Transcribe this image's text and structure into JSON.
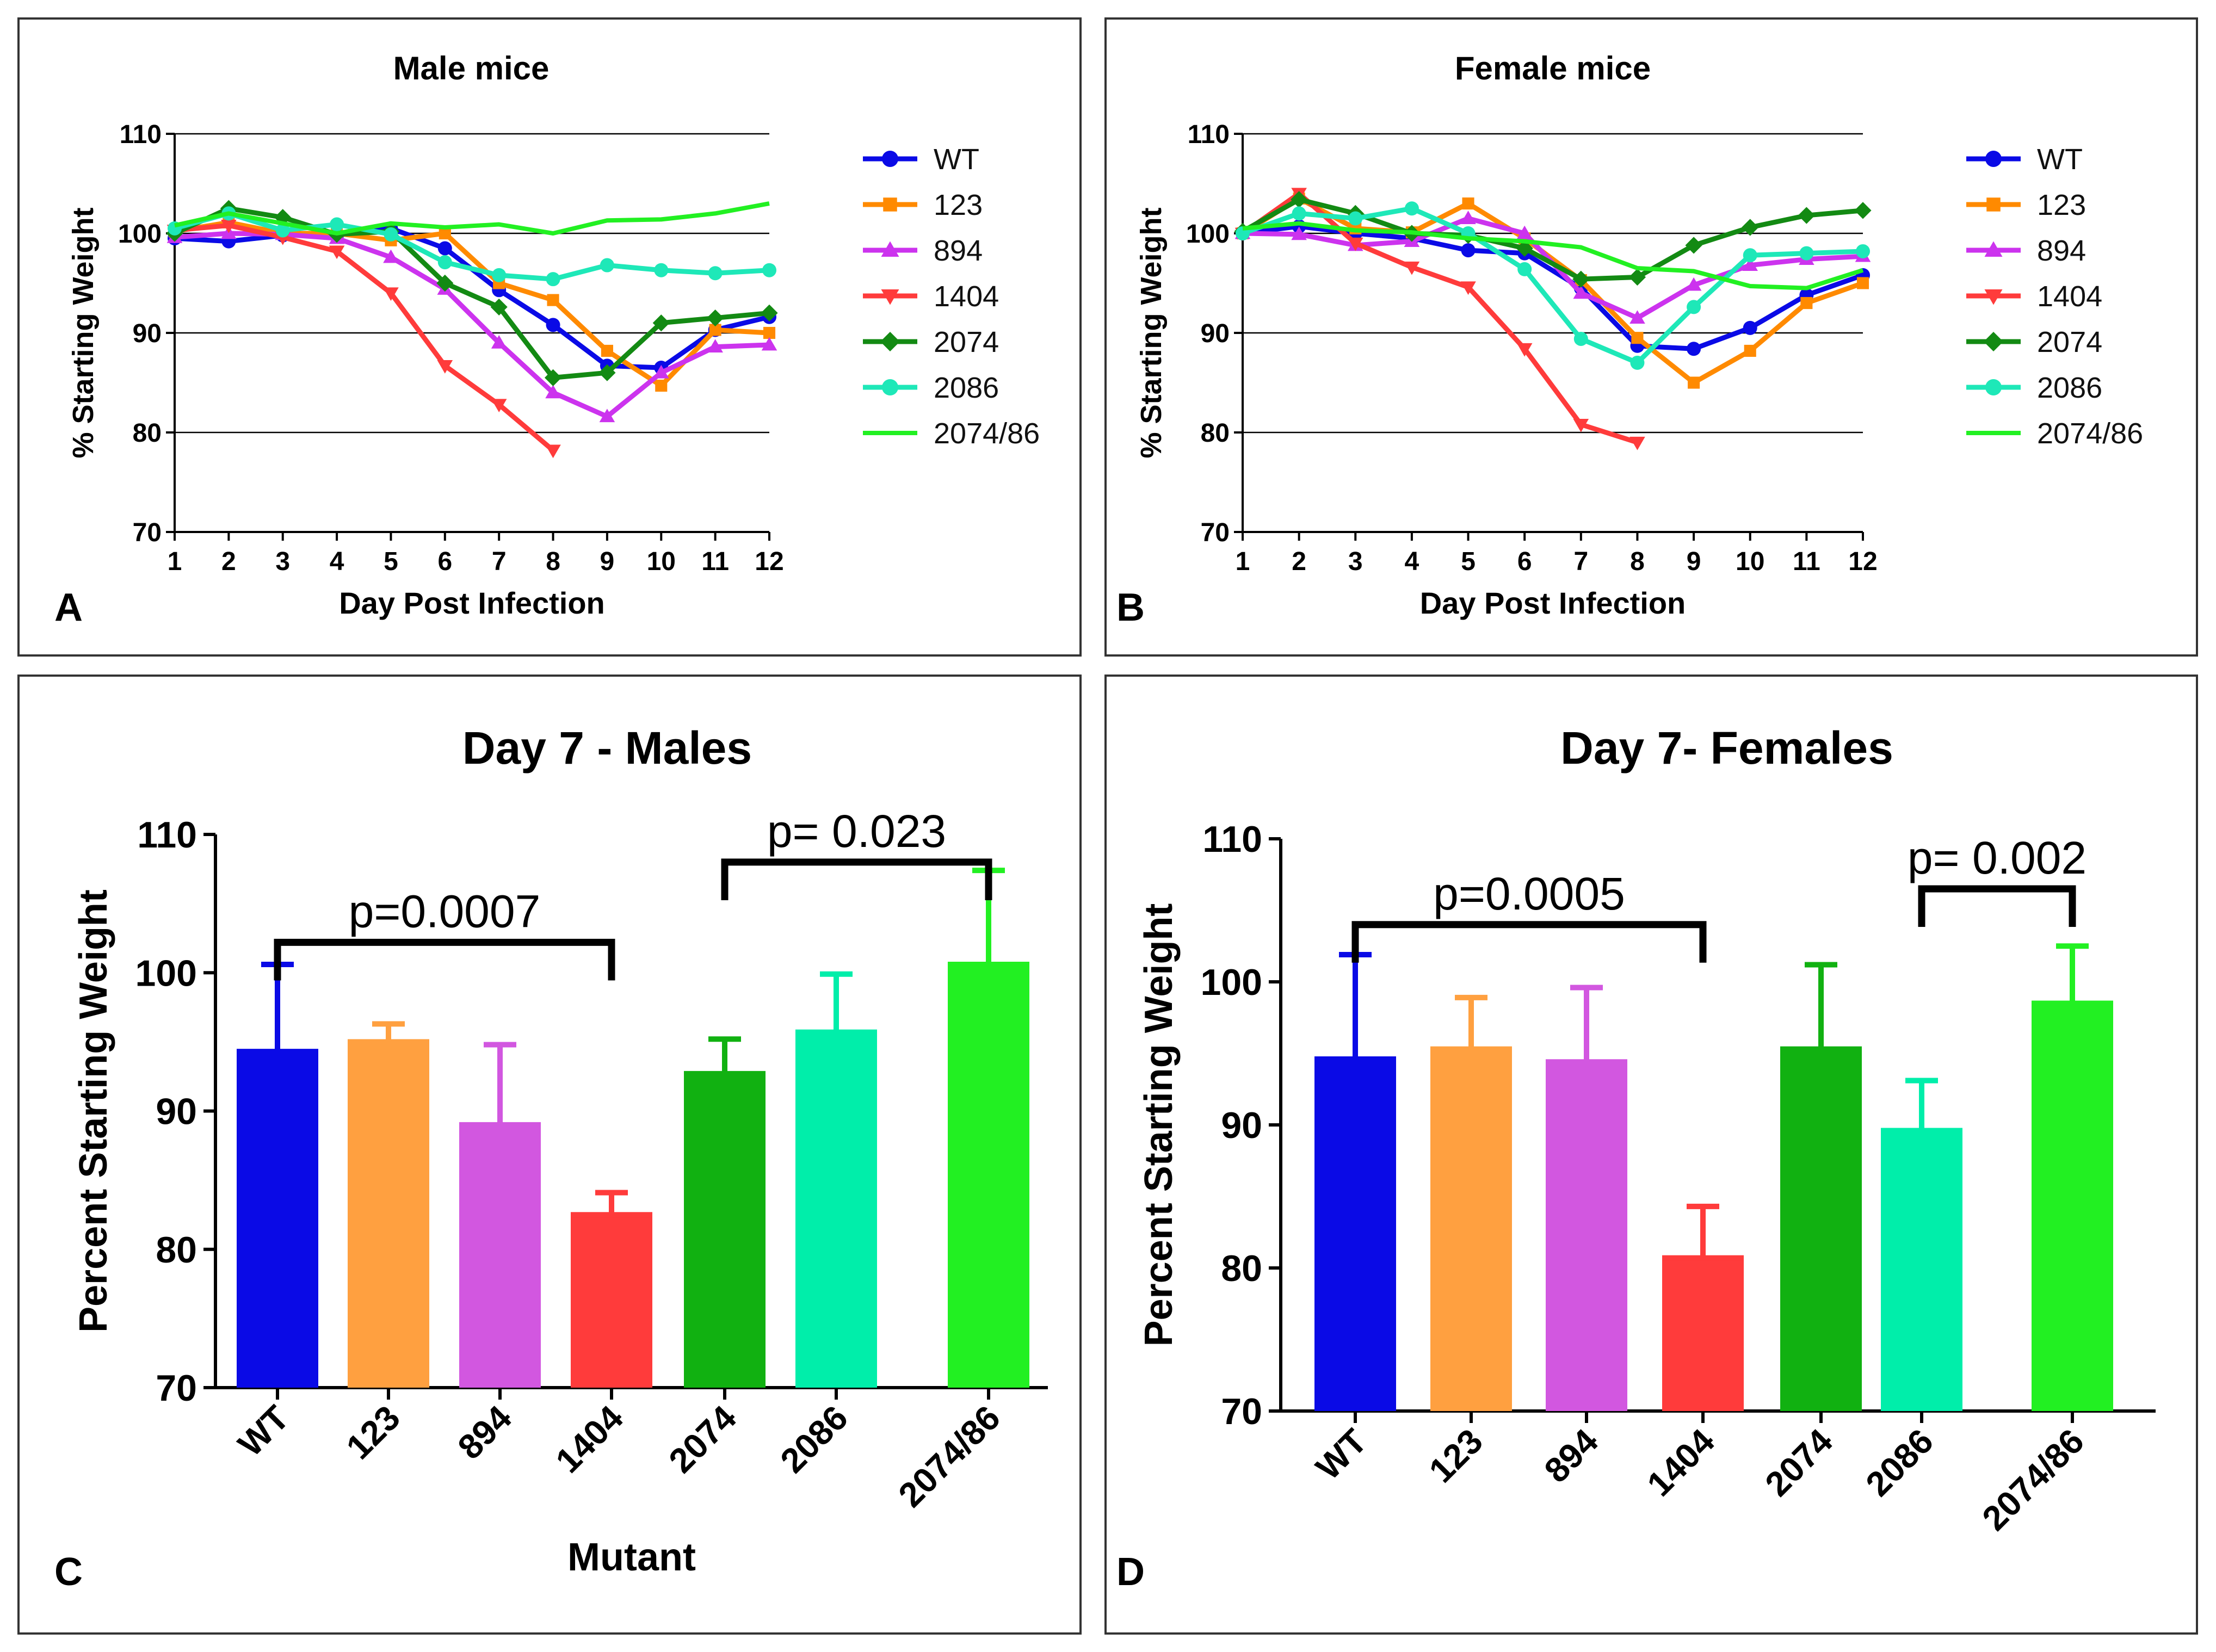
{
  "colors": {
    "WT": "#0a0ae6",
    "123": "#ff8a00",
    "894": "#cc33ee",
    "1404": "#ff3b3b",
    "2074": "#138a13",
    "2086": "#1ee8b8",
    "2074/86": "#22f022",
    "grid": "#000000"
  },
  "bar_colors": {
    "WT": "#0a0ae6",
    "123": "#ffa040",
    "894": "#d257e0",
    "1404": "#ff3b3b",
    "2074": "#11b111",
    "2086": "#00eeaa",
    "2074/86": "#22f022"
  },
  "panels": {
    "a": {
      "letter": "A"
    },
    "b": {
      "letter": "B"
    },
    "c": {
      "letter": "C"
    },
    "d": {
      "letter": "D"
    }
  },
  "chart_data": [
    {
      "id": "a",
      "type": "line",
      "title": "Male mice",
      "xlabel": "Day Post Infection",
      "ylabel": "% Starting Weight",
      "x": [
        1,
        2,
        3,
        4,
        5,
        6,
        7,
        8,
        9,
        10,
        11,
        12
      ],
      "xticks": [
        "1",
        "2",
        "3",
        "4",
        "5",
        "6",
        "7",
        "8",
        "9",
        "10",
        "11",
        "12"
      ],
      "yticks": [
        "70",
        "80",
        "90",
        "100",
        "110"
      ],
      "ylim": [
        70,
        110
      ],
      "grid": true,
      "legend": "right",
      "series": [
        {
          "name": "WT",
          "marker": "circle",
          "values": [
            99.5,
            99.2,
            99.8,
            99.8,
            100.5,
            98.5,
            94.3,
            90.8,
            86.7,
            86.5,
            90.3,
            91.6
          ]
        },
        {
          "name": "123",
          "marker": "square",
          "values": [
            100.2,
            101.1,
            100.0,
            100.0,
            99.3,
            100.0,
            95.0,
            93.3,
            88.2,
            84.7,
            90.3,
            90.0
          ]
        },
        {
          "name": "894",
          "marker": "triangle-up",
          "values": [
            99.6,
            100.0,
            99.9,
            99.5,
            97.6,
            94.4,
            89.0,
            84.0,
            81.6,
            86.0,
            88.6,
            88.8
          ]
        },
        {
          "name": "1404",
          "marker": "triangle-down",
          "values": [
            100.3,
            100.8,
            99.6,
            98.2,
            94.0,
            86.7,
            82.8,
            78.2,
            null,
            null,
            null,
            null
          ]
        },
        {
          "name": "2074",
          "marker": "diamond",
          "values": [
            100.0,
            102.5,
            101.6,
            99.9,
            100.2,
            95.0,
            92.6,
            85.5,
            86.0,
            91.0,
            91.5,
            92.0
          ]
        },
        {
          "name": "2086",
          "marker": "circle",
          "values": [
            100.5,
            102.0,
            100.3,
            100.9,
            99.9,
            97.1,
            95.8,
            95.4,
            96.8,
            96.3,
            96.0,
            96.3
          ]
        },
        {
          "name": "2074/86",
          "marker": "none",
          "values": [
            100.8,
            102.0,
            101.0,
            100.0,
            101.0,
            100.6,
            100.9,
            100.0,
            101.3,
            101.4,
            102.0,
            103.0
          ]
        }
      ]
    },
    {
      "id": "b",
      "type": "line",
      "title": "Female mice",
      "xlabel": "Day Post Infection",
      "ylabel": "% Starting Weight",
      "x": [
        1,
        2,
        3,
        4,
        5,
        6,
        7,
        8,
        9,
        10,
        11,
        12
      ],
      "xticks": [
        "1",
        "2",
        "3",
        "4",
        "5",
        "6",
        "7",
        "8",
        "9",
        "10",
        "11",
        "12"
      ],
      "yticks": [
        "70",
        "80",
        "90",
        "100",
        "110"
      ],
      "ylim": [
        70,
        110
      ],
      "grid": true,
      "legend": "right",
      "series": [
        {
          "name": "WT",
          "marker": "circle",
          "values": [
            100.0,
            100.7,
            100.0,
            99.5,
            98.3,
            98.0,
            94.5,
            88.7,
            88.4,
            90.5,
            93.8,
            95.8
          ]
        },
        {
          "name": "123",
          "marker": "square",
          "values": [
            100.0,
            103.5,
            100.5,
            100.1,
            103.0,
            99.5,
            95.3,
            89.5,
            85.0,
            88.2,
            93.0,
            95.0
          ]
        },
        {
          "name": "894",
          "marker": "triangle-up",
          "values": [
            100.0,
            99.9,
            98.8,
            99.2,
            101.5,
            100.0,
            94.0,
            91.5,
            94.8,
            96.8,
            97.4,
            97.7
          ]
        },
        {
          "name": "1404",
          "marker": "triangle-down",
          "values": [
            100.0,
            104.0,
            99.0,
            96.6,
            94.6,
            88.4,
            80.8,
            79.0,
            null,
            null,
            null,
            null
          ]
        },
        {
          "name": "2074",
          "marker": "diamond",
          "values": [
            100.2,
            103.4,
            102.0,
            100.0,
            99.8,
            98.5,
            95.4,
            95.6,
            98.8,
            100.6,
            101.8,
            102.3
          ]
        },
        {
          "name": "2086",
          "marker": "circle",
          "values": [
            100.0,
            102.0,
            101.5,
            102.5,
            100.0,
            96.4,
            89.4,
            87.0,
            92.6,
            97.8,
            98.0,
            98.2
          ]
        },
        {
          "name": "2074/86",
          "marker": "none",
          "values": [
            100.5,
            101.0,
            100.3,
            100.1,
            99.5,
            99.2,
            98.6,
            96.5,
            96.2,
            94.7,
            94.5,
            96.3
          ]
        }
      ]
    },
    {
      "id": "c",
      "type": "bar",
      "title": "Day 7 - Males",
      "xlabel": "Mutant",
      "ylabel": "Percent Starting Weight",
      "categories": [
        "WT",
        "123",
        "894",
        "1404",
        "2074",
        "2086",
        "2074/86"
      ],
      "values": [
        94.3,
        95.0,
        89.0,
        82.5,
        92.7,
        95.7,
        100.6
      ],
      "errors": [
        6.3,
        1.3,
        5.8,
        1.6,
        2.5,
        4.2,
        6.8
      ],
      "yticks": [
        "70",
        "80",
        "90",
        "100",
        "110"
      ],
      "ylim": [
        70,
        110
      ],
      "grid": false,
      "annotations": [
        {
          "text": "p=0.0007",
          "from": 0,
          "to": 3,
          "level": 102.2
        },
        {
          "text": "p= 0.023",
          "from": 4,
          "to": 6,
          "level": 108.0
        }
      ]
    },
    {
      "id": "d",
      "type": "bar",
      "title": "Day 7- Females",
      "xlabel": "",
      "ylabel": "Percent Starting Weight",
      "categories": [
        "WT",
        "123",
        "894",
        "1404",
        "2074",
        "2086",
        "2074/86"
      ],
      "values": [
        94.6,
        95.3,
        94.4,
        80.7,
        95.3,
        89.6,
        98.5
      ],
      "errors": [
        7.3,
        3.6,
        5.2,
        3.6,
        5.9,
        3.5,
        4.0
      ],
      "yticks": [
        "70",
        "80",
        "90",
        "100",
        "110"
      ],
      "ylim": [
        70,
        110
      ],
      "grid": false,
      "annotations": [
        {
          "text": "p=0.0005",
          "from": 0,
          "to": 3,
          "level": 104.0
        },
        {
          "text": "p= 0.002",
          "from": 5,
          "to": 6,
          "level": 106.5
        }
      ]
    }
  ]
}
